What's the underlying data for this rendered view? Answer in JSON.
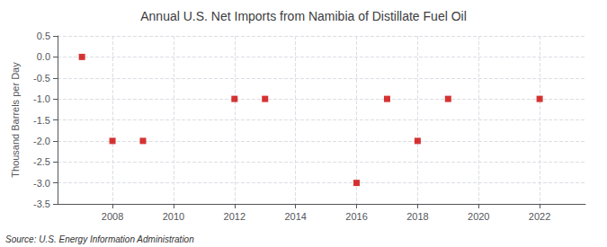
{
  "chart_data": {
    "type": "scatter",
    "title": "Annual U.S. Net Imports from Namibia of Distillate Fuel Oil",
    "ylabel": "Thousand Barrels per Day",
    "annotations": [
      "Source: U.S. Energy Information Administration"
    ],
    "x": [
      2007,
      2008,
      2009,
      2012,
      2013,
      2016,
      2017,
      2018,
      2019,
      2022
    ],
    "values": [
      0,
      -2,
      -2,
      -1,
      -1,
      -3,
      -1,
      -2,
      -1,
      -1
    ],
    "color": "#cc0000",
    "marker": "square",
    "xlim": [
      2006.2,
      2023.5
    ],
    "ylim": [
      -3.5,
      0.5
    ],
    "xticks": [
      2008,
      2010,
      2012,
      2014,
      2016,
      2018,
      2020,
      2022
    ],
    "yticks": [
      0.5,
      {
        "value": 0,
        "label": "0.0"
      },
      -0.5,
      {
        "value": -1,
        "label": "-1.0"
      },
      -1.5,
      {
        "value": -2,
        "label": "-2.0"
      },
      -2.5,
      {
        "value": -3,
        "label": "-3.0"
      },
      -3.5
    ],
    "grid": true
  }
}
